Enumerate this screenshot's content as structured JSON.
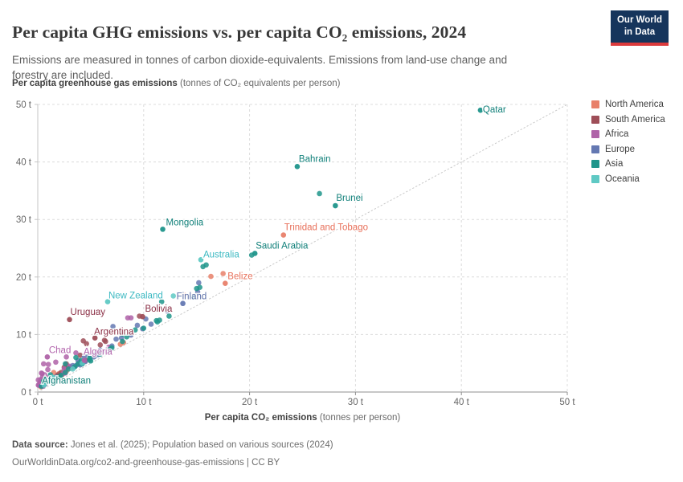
{
  "header": {
    "title": "Per capita GHG emissions vs. per capita CO₂ emissions, 2024",
    "subtitle": "Emissions are measured in tonnes of carbon dioxide-equivalents. Emissions from land-use change and forestry are included.",
    "logo_line1": "Our World",
    "logo_line2": "in Data",
    "logo_bg": "#16355c",
    "logo_accent": "#dc3a3c"
  },
  "footer": {
    "source_bold": "Data source:",
    "source_rest": " Jones et al. (2025); Population based on various sources (2024)",
    "license": "OurWorldinData.org/co2-and-greenhouse-gas-emissions | CC BY"
  },
  "chart_data": {
    "type": "scatter",
    "title": "Per capita GHG emissions vs. per capita CO₂ emissions, 2024",
    "xlabel_bold": "Per capita CO₂ emissions",
    "xlabel_rest": " (tonnes per person)",
    "ylabel_bold": "Per capita greenhouse gas emissions",
    "ylabel_rest": " (tonnes of CO₂ equivalents per person)",
    "xlim": [
      0,
      50
    ],
    "ylim": [
      0,
      50
    ],
    "ticks": [
      0,
      10,
      20,
      30,
      40,
      50
    ],
    "tick_labels": [
      "0 t",
      "10 t",
      "20 t",
      "30 t",
      "40 t",
      "50 t"
    ],
    "grid": "dashed",
    "diagonal_line": "y = x dotted reference line",
    "legend_position": "right",
    "grid_color": "#dcdcdc",
    "diagonal_color": "#c9c9c9",
    "axis_color": "#c4c4c4",
    "bottom_axis_color": "#8f8f8f",
    "tick_text_color": "#666666",
    "series": [
      {
        "name": "North America",
        "color": "#e8806a",
        "label_color": "#e8705a",
        "points": [
          [
            16.35,
            20.1
          ],
          [
            17.5,
            20.6
          ],
          [
            13.8,
            16.9
          ],
          [
            3.9,
            4.9
          ],
          [
            3.2,
            4.2
          ],
          [
            2.6,
            3.5
          ],
          [
            2.7,
            3.6
          ],
          [
            5.3,
            6.3
          ],
          [
            4.5,
            5.4
          ],
          [
            1.3,
            2.5
          ],
          [
            1.2,
            2.3
          ],
          [
            1.5,
            3.4
          ],
          [
            1.7,
            2.7
          ],
          [
            2.0,
            3.2
          ],
          [
            0.3,
            0.9
          ],
          [
            7.8,
            8.3
          ],
          [
            8.1,
            8.6
          ],
          [
            1.1,
            2.0
          ],
          [
            2.3,
            3.0
          ]
        ]
      },
      {
        "name": "South America",
        "color": "#9e4e58",
        "label_color": "#8b3046",
        "points": [
          [
            9.6,
            13.2
          ],
          [
            4.3,
            8.9
          ],
          [
            6.4,
            8.8
          ],
          [
            5.9,
            8.2
          ],
          [
            4.0,
            6.4
          ],
          [
            4.5,
            5.5
          ],
          [
            2.5,
            4.3
          ],
          [
            2.7,
            4.9
          ],
          [
            2.9,
            4.4
          ],
          [
            6.3,
            9.0
          ],
          [
            4.6,
            8.4
          ],
          [
            1.9,
            3.0
          ],
          [
            2.2,
            3.4
          ]
        ]
      },
      {
        "name": "Africa",
        "color": "#af63a8",
        "label_color": "#b264ac",
        "points": [
          [
            0.55,
            4.9
          ],
          [
            1.0,
            4.8
          ],
          [
            2.7,
            6.1
          ],
          [
            3.6,
            6.8
          ],
          [
            8.5,
            12.9
          ],
          [
            8.8,
            12.9
          ],
          [
            6.7,
            7.8
          ],
          [
            2.4,
            3.2
          ],
          [
            1.9,
            2.5
          ],
          [
            2.6,
            3.3
          ],
          [
            1.7,
            5.2
          ],
          [
            0.4,
            3.2
          ],
          [
            0.35,
            3.3
          ],
          [
            0.95,
            3.9
          ],
          [
            0.7,
            1.6
          ],
          [
            0.65,
            1.5
          ],
          [
            0.2,
            1.6
          ],
          [
            0.45,
            1.4
          ],
          [
            0.7,
            1.4
          ],
          [
            0.35,
            1.6
          ],
          [
            0.65,
            3.0
          ],
          [
            0.05,
            1.2
          ],
          [
            0.8,
            2.5
          ],
          [
            0.7,
            2.0
          ],
          [
            0.25,
            1.1
          ],
          [
            0.15,
            1.3
          ],
          [
            0.45,
            2.6
          ],
          [
            0.05,
            2.1
          ],
          [
            0.1,
            1.2
          ],
          [
            0.6,
            1.8
          ],
          [
            0.25,
            1.7
          ],
          [
            0.35,
            1.4
          ],
          [
            3.0,
            4.5
          ],
          [
            2.5,
            4.0
          ],
          [
            1.2,
            2.1
          ],
          [
            0.5,
            1.0
          ],
          [
            0.3,
            2.2
          ],
          [
            0.9,
            1.9
          ],
          [
            1.4,
            2.3
          ]
        ]
      },
      {
        "name": "Europe",
        "color": "#6478b2",
        "label_color": "#5c70a8",
        "points": [
          [
            15.2,
            19.0
          ],
          [
            15.1,
            17.4
          ],
          [
            12.2,
            14.1
          ],
          [
            10.7,
            11.8
          ],
          [
            10.2,
            12.7
          ],
          [
            9.9,
            11.0
          ],
          [
            9.4,
            11.6
          ],
          [
            8.8,
            9.9
          ],
          [
            7.9,
            9.4
          ],
          [
            7.4,
            9.2
          ],
          [
            7.1,
            11.4
          ],
          [
            7.0,
            8.0
          ],
          [
            6.1,
            7.0
          ],
          [
            5.7,
            6.5
          ],
          [
            5.4,
            6.3
          ],
          [
            5.3,
            6.1
          ],
          [
            5.2,
            6.4
          ],
          [
            4.9,
            6.5
          ],
          [
            4.4,
            6.2
          ],
          [
            4.3,
            5.2
          ],
          [
            4.0,
            4.9
          ],
          [
            4.0,
            4.7
          ],
          [
            3.8,
            5.5
          ],
          [
            3.6,
            4.6
          ],
          [
            3.4,
            4.3
          ],
          [
            3.3,
            4.6
          ],
          [
            1.7,
            2.6
          ],
          [
            5.9,
            7.3
          ],
          [
            6.0,
            6.9
          ],
          [
            5.5,
            6.7
          ],
          [
            5.8,
            6.6
          ],
          [
            4.5,
            5.3
          ],
          [
            4.2,
            4.9
          ],
          [
            3.9,
            5.1
          ]
        ]
      },
      {
        "name": "Asia",
        "color": "#1f958b",
        "label_color": "#11807a",
        "points": [
          [
            26.6,
            34.5
          ],
          [
            20.2,
            23.8
          ],
          [
            15.9,
            22.1
          ],
          [
            15.6,
            21.8
          ],
          [
            15.3,
            18.2
          ],
          [
            15.0,
            18.0
          ],
          [
            14.65,
            16.5
          ],
          [
            11.7,
            15.7
          ],
          [
            11.2,
            12.4
          ],
          [
            11.5,
            12.5
          ],
          [
            11.3,
            12.2
          ],
          [
            10.0,
            11.1
          ],
          [
            9.2,
            10.8
          ],
          [
            8.4,
            9.6
          ],
          [
            8.0,
            8.8
          ],
          [
            8.0,
            10.1
          ],
          [
            7.0,
            7.7
          ],
          [
            6.8,
            7.4
          ],
          [
            5.9,
            6.6
          ],
          [
            4.9,
            5.9
          ],
          [
            4.9,
            5.6
          ],
          [
            4.1,
            5.5
          ],
          [
            3.8,
            4.9
          ],
          [
            3.6,
            6.0
          ],
          [
            3.5,
            4.4
          ],
          [
            2.9,
            4.0
          ],
          [
            2.6,
            4.9
          ],
          [
            2.6,
            3.4
          ],
          [
            2.2,
            2.9
          ],
          [
            2.1,
            2.6
          ],
          [
            1.9,
            2.6
          ],
          [
            1.4,
            2.2
          ],
          [
            1.3,
            1.9
          ],
          [
            1.2,
            3.0
          ],
          [
            1.1,
            1.9
          ],
          [
            1.0,
            2.0
          ],
          [
            0.9,
            1.7
          ],
          [
            0.7,
            2.3
          ],
          [
            0.65,
            1.5
          ],
          [
            0.55,
            1.7
          ],
          [
            0.35,
            1.0
          ],
          [
            4.2,
            4.9
          ],
          [
            5.0,
            5.4
          ],
          [
            12.4,
            13.2
          ]
        ]
      },
      {
        "name": "Oceania",
        "color": "#5fc9c4",
        "label_color": "#3cb9c2",
        "points": [
          [
            12.8,
            16.7
          ],
          [
            0.9,
            2.1
          ],
          [
            1.4,
            2.6
          ],
          [
            0.6,
            1.5
          ],
          [
            1.1,
            2.0
          ],
          [
            1.3,
            2.2
          ],
          [
            1.5,
            2.4
          ],
          [
            0.6,
            1.2
          ],
          [
            4.2,
            5.0
          ],
          [
            3.3,
            4.0
          ]
        ]
      }
    ],
    "labeled_points": [
      {
        "label": "Qatar",
        "series": "Asia",
        "x": 41.8,
        "y": 49.0,
        "ox": 3,
        "oy": -1
      },
      {
        "label": "Bahrain",
        "series": "Asia",
        "x": 24.5,
        "y": 39.2,
        "ox": 2,
        "oy": -10
      },
      {
        "label": "Brunei",
        "series": "Asia",
        "x": 28.1,
        "y": 32.4,
        "ox": 1,
        "oy": -10
      },
      {
        "label": "Mongolia",
        "series": "Asia",
        "x": 11.8,
        "y": 28.3,
        "ox": 4,
        "oy": -9
      },
      {
        "label": "Trinidad and Tobago",
        "series": "North America",
        "x": 23.2,
        "y": 27.3,
        "ox": 1,
        "oy": -10
      },
      {
        "label": "Saudi Arabia",
        "series": "Asia",
        "x": 20.5,
        "y": 24.1,
        "ox": 1,
        "oy": -10
      },
      {
        "label": "Australia",
        "series": "Oceania",
        "x": 15.4,
        "y": 23.0,
        "ox": 3,
        "oy": -7
      },
      {
        "label": "Belize",
        "series": "North America",
        "x": 17.7,
        "y": 18.9,
        "ox": 3,
        "oy": -9
      },
      {
        "label": "New Zealand",
        "series": "Oceania",
        "x": 6.6,
        "y": 15.7,
        "ox": 1,
        "oy": -8
      },
      {
        "label": "Finland",
        "series": "Europe",
        "x": 13.7,
        "y": 15.4,
        "ox": -8,
        "oy": -9
      },
      {
        "label": "Uruguay",
        "series": "South America",
        "x": 3.0,
        "y": 12.6,
        "ox": 1,
        "oy": -10
      },
      {
        "label": "Bolivia",
        "series": "South America",
        "x": 9.9,
        "y": 13.1,
        "ox": 3,
        "oy": -10
      },
      {
        "label": "Argentina",
        "series": "South America",
        "x": 5.4,
        "y": 9.4,
        "ox": -1,
        "oy": -8
      },
      {
        "label": "Chad",
        "series": "Africa",
        "x": 0.9,
        "y": 6.1,
        "ox": 2,
        "oy": -9
      },
      {
        "label": "Algeria",
        "series": "Africa",
        "x": 4.4,
        "y": 5.5,
        "ox": -1,
        "oy": -11
      },
      {
        "label": "Afghanistan",
        "series": "Asia",
        "x": 0.55,
        "y": 1.9,
        "ox": -2,
        "oy": -1
      }
    ]
  }
}
